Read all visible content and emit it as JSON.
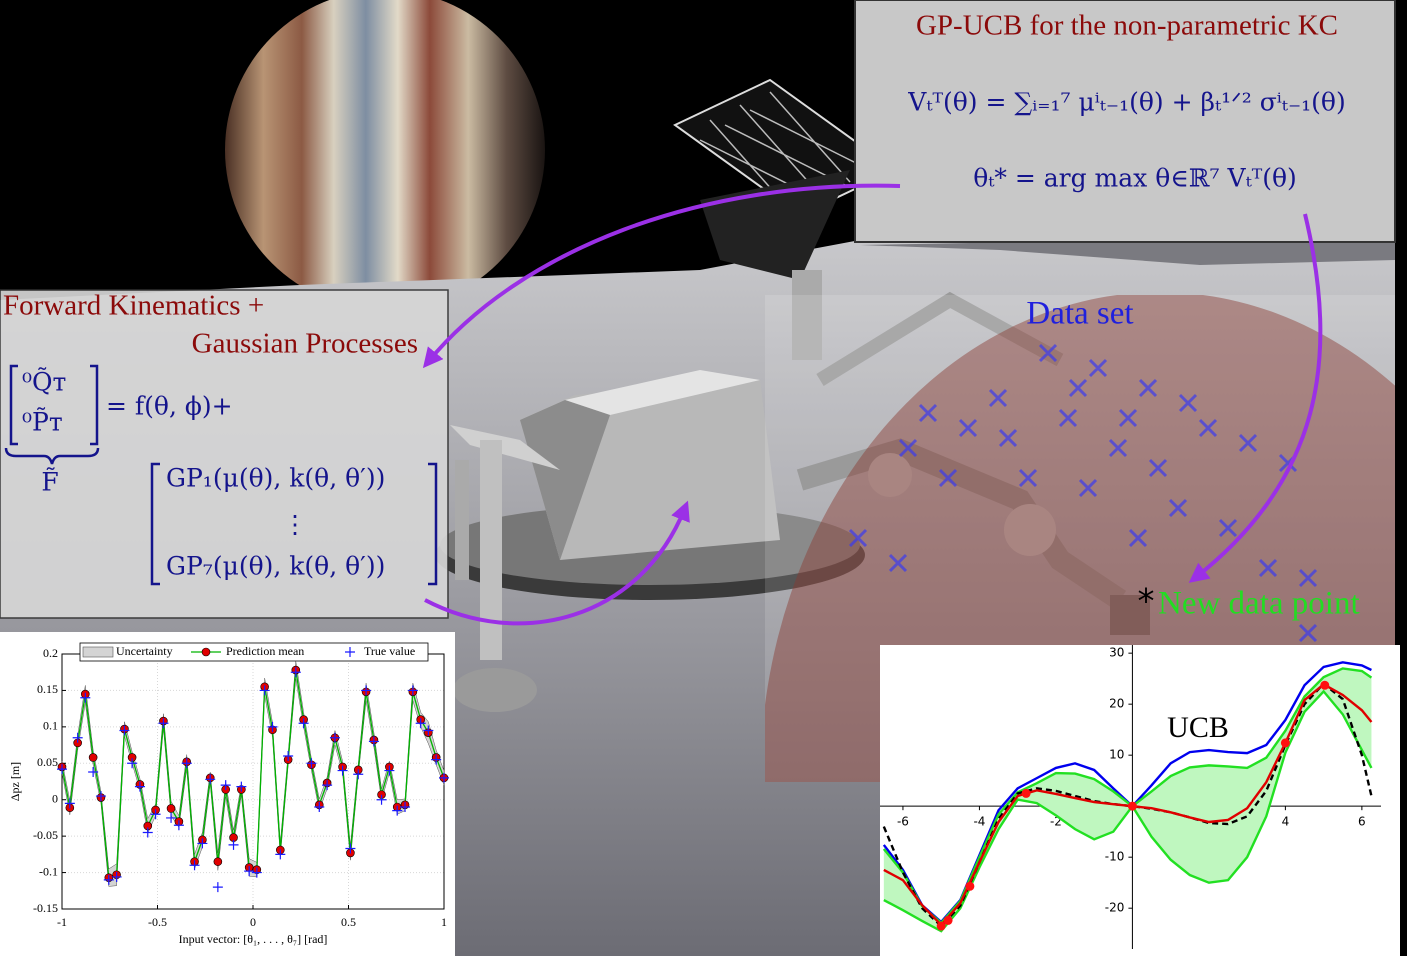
{
  "gpucb_box": {
    "title": "GP-UCB for the non-parametric KC",
    "formula_ucb": "Vₜᵀ(θ) = ∑ᵢ₌₁⁷ μⁱₜ₋₁(θ) + βₜ¹ᐟ² σⁱₜ₋₁(θ)",
    "formula_argmax": "θₜ* =  arg max θ∈ℝ⁷  Vₜᵀ(θ)"
  },
  "fk_box": {
    "title_line_1": "Forward Kinematics +",
    "title_line_2": "Gaussian Processes",
    "matrix_q": "⁰Q̃ᴛ",
    "matrix_p": "⁰P̃ᴛ",
    "equals": "= f(θ, ϕ)+",
    "brace_label": "F̃",
    "gp_first": "GP₁(μ(θ), k(θ, θ′))",
    "gp_dots": "⋮",
    "gp_last": "GP₇(μ(θ), k(θ, θ′))"
  },
  "scene_labels": {
    "data_set": "Data set",
    "new_point_marker": "*",
    "new_data_point": "New data point"
  },
  "chart_data": [
    {
      "type": "line",
      "axes": "box",
      "grid": true,
      "legend": "top",
      "x_label": "Input vector:  [θ₁, . . . , θ₇]  [rad]",
      "y_label": "Δpz [m]",
      "xlim": [
        -1,
        1
      ],
      "ylim": [
        -0.15,
        0.2
      ],
      "xticks": [
        -1,
        -0.5,
        0,
        0.5,
        1
      ],
      "yticks": [
        -0.15,
        -0.1,
        -0.05,
        0,
        0.05,
        0.1,
        0.15,
        0.2
      ],
      "x": [
        -1,
        -0.959,
        -0.918,
        -0.878,
        -0.837,
        -0.796,
        -0.755,
        -0.714,
        -0.673,
        -0.633,
        -0.592,
        -0.551,
        -0.51,
        -0.469,
        -0.429,
        -0.388,
        -0.347,
        -0.306,
        -0.265,
        -0.224,
        -0.184,
        -0.143,
        -0.102,
        -0.061,
        -0.02,
        0.02,
        0.061,
        0.102,
        0.143,
        0.184,
        0.224,
        0.265,
        0.306,
        0.347,
        0.388,
        0.429,
        0.469,
        0.51,
        0.551,
        0.592,
        0.633,
        0.673,
        0.714,
        0.755,
        0.796,
        0.837,
        0.878,
        0.918,
        0.959,
        1
      ],
      "series": [
        {
          "name": "Uncertainty",
          "kind": "error",
          "of": "Prediction mean",
          "color": "#d4d4d4",
          "values": [
            0.008,
            0.01,
            0.01,
            0.012,
            0.01,
            0.008,
            0.012,
            0.015,
            0.01,
            0.008,
            0.008,
            0.01,
            0.008,
            0.01,
            0.01,
            0.008,
            0.01,
            0.01,
            0.01,
            0.008,
            0.012,
            0.01,
            0.01,
            0.008,
            0.012,
            0.01,
            0.012,
            0.01,
            0.01,
            0.008,
            0.012,
            0.01,
            0.008,
            0.008,
            0.008,
            0.01,
            0.008,
            0.01,
            0.008,
            0.012,
            0.01,
            0.008,
            0.008,
            0.01,
            0.008,
            0.012,
            0.01,
            0.015,
            0.01,
            0.01
          ]
        },
        {
          "name": "Prediction mean",
          "kind": "line",
          "marker": "circle",
          "marker_color": "#e00000",
          "color": "#00b400",
          "values": [
            0.045,
            -0.011,
            0.078,
            0.145,
            0.058,
            0.003,
            -0.107,
            -0.103,
            0.097,
            0.058,
            0.021,
            -0.036,
            -0.014,
            0.108,
            -0.012,
            -0.03,
            0.052,
            -0.085,
            -0.055,
            0.03,
            -0.085,
            0.014,
            -0.052,
            0.014,
            -0.093,
            -0.096,
            0.155,
            0.096,
            -0.069,
            0.055,
            0.178,
            0.11,
            0.048,
            -0.007,
            0.023,
            0.085,
            0.045,
            -0.073,
            0.041,
            0.148,
            0.082,
            0.007,
            0.045,
            -0.01,
            -0.007,
            0.148,
            0.11,
            0.092,
            0.058,
            0.03
          ]
        },
        {
          "name": "True value",
          "kind": "markers",
          "marker": "plus",
          "color": "#1a1aff",
          "values": [
            0.042,
            -0.005,
            0.085,
            0.14,
            0.038,
            0.005,
            -0.11,
            -0.106,
            0.095,
            0.05,
            0.018,
            -0.045,
            -0.02,
            0.105,
            -0.025,
            -0.035,
            0.05,
            -0.09,
            -0.06,
            0.028,
            -0.12,
            0.02,
            -0.062,
            0.018,
            -0.098,
            -0.1,
            0.15,
            0.1,
            -0.075,
            0.06,
            0.175,
            0.105,
            0.05,
            -0.01,
            0.02,
            0.085,
            0.04,
            -0.067,
            0.035,
            0.15,
            0.08,
            0,
            0.04,
            -0.015,
            -0.01,
            0.15,
            0.105,
            0.095,
            0.055,
            0.03
          ]
        }
      ]
    },
    {
      "type": "line",
      "axes": "origin",
      "grid": false,
      "fill_color": "#bff7bf",
      "annotation": "UCB",
      "annotation_color": "#1414c8",
      "xlim": [
        -6.6,
        6.5
      ],
      "ylim": [
        -28,
        31.6
      ],
      "xticks": [
        -6,
        -4,
        -2,
        2,
        4,
        6
      ],
      "yticks": [
        -20,
        -10,
        10,
        20,
        30
      ],
      "x": [
        -6.5,
        -6,
        -5.5,
        -5,
        -4.5,
        -4,
        -3.5,
        -3,
        -2.5,
        -2,
        -1.5,
        -1,
        -0.5,
        0,
        0.5,
        1,
        1.5,
        2,
        2.5,
        3,
        3.5,
        4,
        4.5,
        5,
        5.5,
        6,
        6.25
      ],
      "series": [
        {
          "kind": "line",
          "color": "#0000ee",
          "values": [
            -7.6,
            -12.5,
            -19.4,
            -22.7,
            -18.4,
            -9.6,
            -0.8,
            3.5,
            5.5,
            7.5,
            8.4,
            7.1,
            3.5,
            0,
            4.1,
            8.4,
            10.6,
            11,
            10.6,
            10.4,
            12,
            16.9,
            23.7,
            27.3,
            28.2,
            27.6,
            26.7
          ]
        },
        {
          "kind": "upper",
          "color": "#22e022",
          "values": [
            -8.4,
            -13,
            -19.6,
            -22.9,
            -18.6,
            -10,
            -1.6,
            2.7,
            4.5,
            6.5,
            6.4,
            5.3,
            2.9,
            0,
            2.9,
            5.9,
            7.6,
            8,
            7.8,
            7.5,
            9.5,
            14.8,
            21.5,
            25.3,
            27,
            26.5,
            25.2
          ]
        },
        {
          "kind": "lower",
          "color": "#22e022",
          "values": [
            -18.4,
            -20.4,
            -22.5,
            -24.5,
            -20,
            -12,
            -4.5,
            1.3,
            0.6,
            -1.8,
            -4.5,
            -6.5,
            -5,
            0,
            -6,
            -10.5,
            -13.5,
            -15,
            -14.5,
            -10,
            -2,
            10.5,
            18.5,
            22.5,
            18,
            11,
            7.5
          ]
        },
        {
          "kind": "line",
          "dash": true,
          "color": "#000000",
          "values": [
            -4,
            -13,
            -20,
            -23.5,
            -19.5,
            -11,
            -2.5,
            2.5,
            3.5,
            3,
            2,
            1,
            0.4,
            0,
            -0.5,
            -1.2,
            -2.2,
            -3.3,
            -3.5,
            -2,
            3,
            12,
            20,
            24,
            21,
            10,
            2
          ]
        },
        {
          "kind": "line",
          "color": "#e00000",
          "values": [
            -12.5,
            -14.5,
            -19.4,
            -23.3,
            -19,
            -11,
            -3.1,
            2,
            3.1,
            2.4,
            1.6,
            0.8,
            0.4,
            0,
            -0.4,
            -1.2,
            -2.2,
            -3.1,
            -2.7,
            -0.4,
            4.7,
            12.4,
            20.8,
            23.9,
            21.8,
            18.8,
            16.5
          ]
        },
        {
          "kind": "scatter",
          "marker": "circle",
          "color": "#ff1010",
          "x": [
            -5,
            -4.82,
            -4.25,
            -2.78,
            0,
            4,
            5.03
          ],
          "values": [
            -23.5,
            -22.4,
            -15.7,
            2.5,
            0,
            12.4,
            23.7
          ]
        }
      ]
    }
  ]
}
